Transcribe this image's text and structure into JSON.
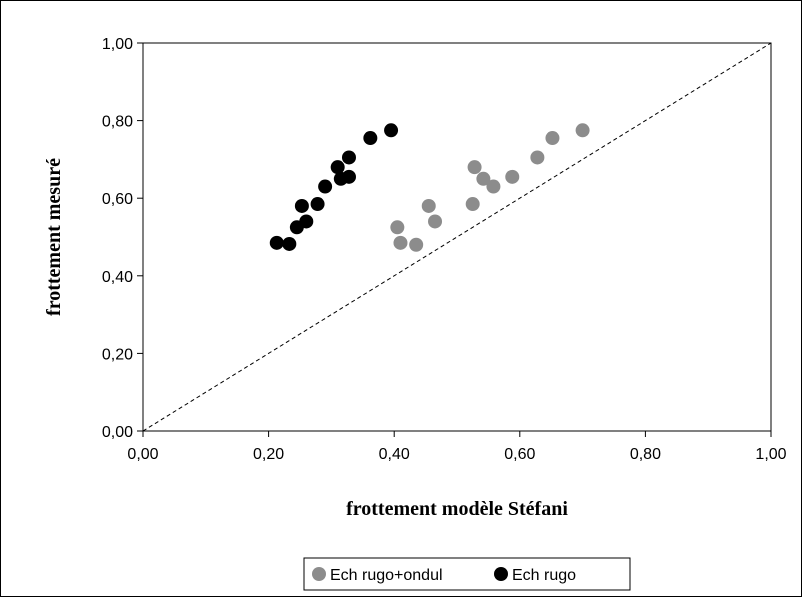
{
  "chart_data": {
    "type": "scatter",
    "xlabel": "frottement modèle Stéfani",
    "ylabel": "frottement mesuré",
    "xlim": [
      0,
      1
    ],
    "ylim": [
      0,
      1
    ],
    "x_ticks": [
      "0,00",
      "0,20",
      "0,40",
      "0,60",
      "0,80",
      "1,00"
    ],
    "y_ticks": [
      "0,00",
      "0,20",
      "0,40",
      "0,60",
      "0,80",
      "1,00"
    ],
    "grid": false,
    "legend_position": "bottom",
    "reference_line": {
      "style": "dashed",
      "from": [
        0,
        0
      ],
      "to": [
        1,
        1
      ]
    },
    "series": [
      {
        "name": "Ech rugo+ondul",
        "color": "#8c8c8c",
        "points": [
          [
            0.405,
            0.525
          ],
          [
            0.41,
            0.485
          ],
          [
            0.435,
            0.48
          ],
          [
            0.455,
            0.58
          ],
          [
            0.465,
            0.54
          ],
          [
            0.525,
            0.585
          ],
          [
            0.528,
            0.68
          ],
          [
            0.542,
            0.65
          ],
          [
            0.558,
            0.63
          ],
          [
            0.588,
            0.655
          ],
          [
            0.628,
            0.705
          ],
          [
            0.652,
            0.755
          ],
          [
            0.7,
            0.775
          ]
        ]
      },
      {
        "name": "Ech rugo",
        "color": "#000000",
        "points": [
          [
            0.213,
            0.485
          ],
          [
            0.233,
            0.482
          ],
          [
            0.245,
            0.525
          ],
          [
            0.253,
            0.58
          ],
          [
            0.26,
            0.54
          ],
          [
            0.278,
            0.585
          ],
          [
            0.29,
            0.63
          ],
          [
            0.31,
            0.68
          ],
          [
            0.315,
            0.65
          ],
          [
            0.328,
            0.655
          ],
          [
            0.328,
            0.705
          ],
          [
            0.362,
            0.755
          ],
          [
            0.395,
            0.775
          ]
        ]
      }
    ]
  }
}
